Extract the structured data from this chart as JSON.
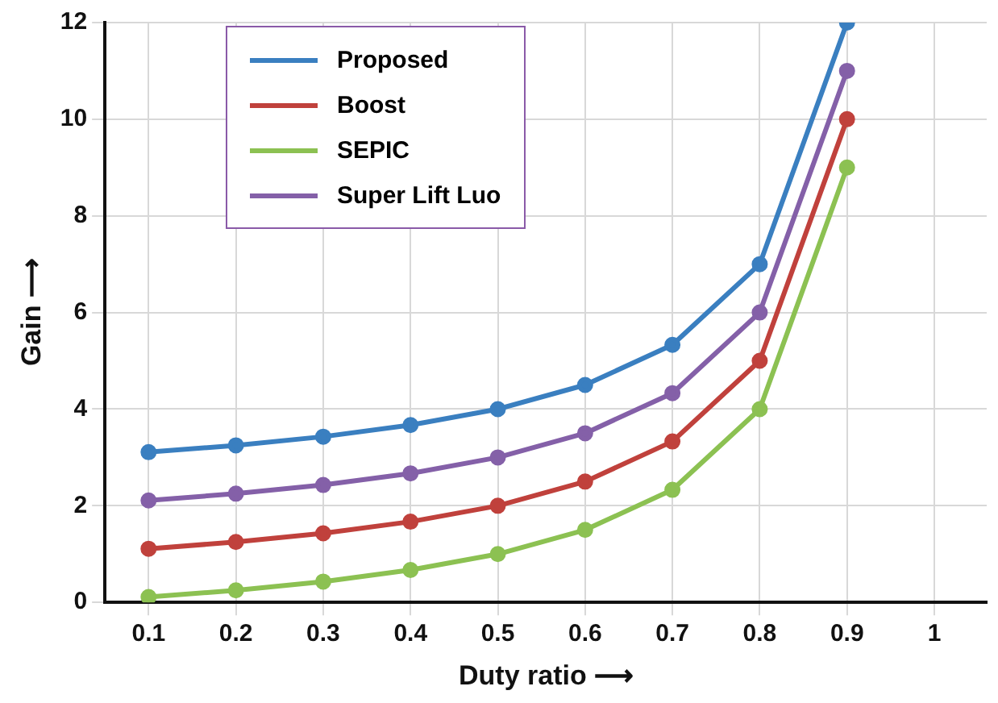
{
  "chart_data": {
    "type": "line",
    "xlabel": "Duty ratio ⟶",
    "ylabel": "Gain ⟶",
    "x": [
      0.1,
      0.2,
      0.3,
      0.4,
      0.5,
      0.6,
      0.7,
      0.8,
      0.9
    ],
    "xlim": [
      0.05,
      1.06
    ],
    "xticks": [
      0.1,
      0.2,
      0.3,
      0.4,
      0.5,
      0.6,
      0.7,
      0.8,
      0.9,
      1
    ],
    "ylim": [
      0,
      12
    ],
    "yticks": [
      0,
      2,
      4,
      6,
      8,
      10,
      12
    ],
    "grid": true,
    "legend": "top left",
    "marker": "circle",
    "line_style": "solid",
    "series": [
      {
        "name": "Proposed",
        "color": "#3a7fc0",
        "values": [
          3.11,
          3.25,
          3.43,
          3.67,
          4,
          4.5,
          5.33,
          7,
          12
        ]
      },
      {
        "name": "Boost",
        "color": "#c0413c",
        "values": [
          1.11,
          1.25,
          1.43,
          1.67,
          2,
          2.5,
          3.33,
          5,
          10
        ]
      },
      {
        "name": "SEPIC",
        "color": "#8cc152",
        "values": [
          0.11,
          0.25,
          0.43,
          0.67,
          1,
          1.5,
          2.33,
          4,
          9
        ]
      },
      {
        "name": "Super Lift Luo",
        "color": "#8460a8",
        "values": [
          2.11,
          2.25,
          2.43,
          2.67,
          3,
          3.5,
          4.33,
          6,
          11
        ]
      }
    ]
  }
}
